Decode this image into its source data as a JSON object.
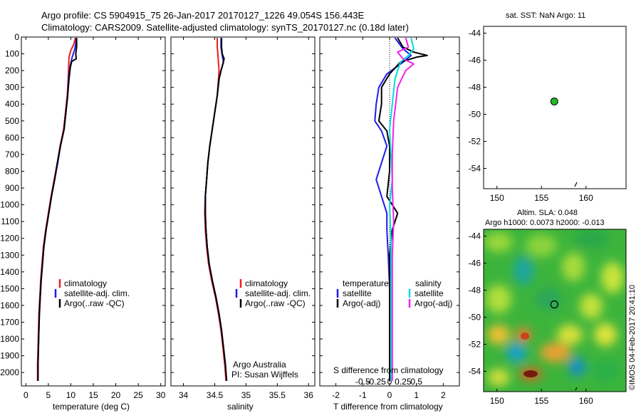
{
  "header": {
    "line1": "Argo profile: CS 5904915_75 26-Jan-2017 20170127_1226 49.054S 156.443E",
    "line2": "Climatology: CARS2009. Satellite-adjusted climatology: synTS_20170127.nc (0.18d later)"
  },
  "chart_data": [
    {
      "type": "line",
      "panel": "temperature",
      "xlabel": "temperature (deg C)",
      "ylabel": "",
      "xlim": [
        -1,
        31
      ],
      "ylim": [
        2080,
        0
      ],
      "y_reversed": true,
      "xticks": [
        0,
        5,
        10,
        15,
        20,
        25,
        30
      ],
      "yticks": [
        0,
        100,
        200,
        300,
        400,
        500,
        600,
        700,
        800,
        900,
        1000,
        1100,
        1200,
        1300,
        1400,
        1500,
        1600,
        1700,
        1800,
        1900,
        2000
      ],
      "legend": [
        "climatology",
        "satellite-adj. clim.",
        "Argo(..raw -QC)"
      ],
      "legend_position": "lower-left",
      "series": [
        {
          "name": "climatology",
          "color": "#ee1c1c",
          "points": [
            [
              11.0,
              5
            ],
            [
              10.7,
              40
            ],
            [
              10.0,
              80
            ],
            [
              9.6,
              120
            ],
            [
              9.5,
              180
            ],
            [
              9.4,
              250
            ],
            [
              9.2,
              350
            ],
            [
              8.8,
              450
            ],
            [
              8.4,
              550
            ],
            [
              7.6,
              650
            ],
            [
              7.0,
              750
            ],
            [
              6.3,
              850
            ],
            [
              5.6,
              950
            ],
            [
              5.0,
              1050
            ],
            [
              4.4,
              1150
            ],
            [
              3.9,
              1250
            ],
            [
              3.6,
              1350
            ],
            [
              3.3,
              1450
            ],
            [
              3.1,
              1550
            ],
            [
              2.9,
              1650
            ],
            [
              2.8,
              1750
            ],
            [
              2.7,
              1850
            ],
            [
              2.6,
              1950
            ],
            [
              2.6,
              2050
            ]
          ]
        },
        {
          "name": "satellite-adj. clim.",
          "color": "#1c1cee",
          "points": [
            [
              11.2,
              5
            ],
            [
              11.1,
              40
            ],
            [
              10.8,
              80
            ],
            [
              10.3,
              120
            ],
            [
              9.8,
              180
            ],
            [
              9.5,
              250
            ],
            [
              9.3,
              350
            ],
            [
              8.9,
              450
            ],
            [
              8.5,
              550
            ],
            [
              7.7,
              650
            ],
            [
              7.1,
              750
            ],
            [
              6.4,
              850
            ],
            [
              5.7,
              950
            ],
            [
              5.1,
              1050
            ],
            [
              4.5,
              1150
            ],
            [
              4.0,
              1250
            ],
            [
              3.7,
              1350
            ],
            [
              3.4,
              1450
            ],
            [
              3.2,
              1550
            ],
            [
              3.0,
              1650
            ],
            [
              2.9,
              1750
            ],
            [
              2.8,
              1850
            ],
            [
              2.7,
              1950
            ],
            [
              2.7,
              2050
            ]
          ]
        },
        {
          "name": "Argo(..raw -QC)",
          "color": "#000000",
          "points": [
            [
              11.3,
              5
            ],
            [
              11.3,
              60
            ],
            [
              11.1,
              100
            ],
            [
              11.2,
              130
            ],
            [
              10.2,
              145
            ],
            [
              9.9,
              180
            ],
            [
              9.6,
              250
            ],
            [
              9.3,
              350
            ],
            [
              8.9,
              450
            ],
            [
              8.5,
              550
            ],
            [
              7.7,
              650
            ],
            [
              7.0,
              750
            ],
            [
              6.4,
              850
            ],
            [
              5.7,
              950
            ],
            [
              5.1,
              1050
            ],
            [
              4.5,
              1150
            ],
            [
              4.0,
              1250
            ],
            [
              3.7,
              1350
            ],
            [
              3.4,
              1450
            ],
            [
              3.2,
              1550
            ],
            [
              3.0,
              1650
            ],
            [
              2.9,
              1750
            ],
            [
              2.8,
              1850
            ],
            [
              2.7,
              1950
            ],
            [
              2.7,
              2050
            ]
          ]
        }
      ]
    },
    {
      "type": "line",
      "panel": "salinity",
      "xlabel": "salinity",
      "ylabel": "",
      "xlim": [
        33.8,
        36.1
      ],
      "ylim": [
        2080,
        0
      ],
      "y_reversed": true,
      "xticks": [
        34,
        34.5,
        35,
        35.5,
        36
      ],
      "legend": [
        "climatology",
        "satellite-adj. clim.",
        "Argo(..raw -QC)"
      ],
      "legend_position": "lower-right",
      "annotations": [
        "Argo Australia",
        "PI: Susan Wijffels"
      ],
      "series": [
        {
          "name": "climatology",
          "color": "#ee1c1c",
          "points": [
            [
              34.54,
              5
            ],
            [
              34.54,
              60
            ],
            [
              34.55,
              100
            ],
            [
              34.56,
              150
            ],
            [
              34.57,
              200
            ],
            [
              34.56,
              250
            ],
            [
              34.54,
              350
            ],
            [
              34.5,
              450
            ],
            [
              34.46,
              550
            ],
            [
              34.42,
              650
            ],
            [
              34.39,
              750
            ],
            [
              34.37,
              850
            ],
            [
              34.35,
              950
            ],
            [
              34.34,
              1050
            ],
            [
              34.35,
              1150
            ],
            [
              34.37,
              1250
            ],
            [
              34.4,
              1350
            ],
            [
              34.45,
              1450
            ],
            [
              34.51,
              1550
            ],
            [
              34.56,
              1650
            ],
            [
              34.6,
              1750
            ],
            [
              34.63,
              1850
            ],
            [
              34.66,
              1950
            ],
            [
              34.68,
              2050
            ]
          ]
        },
        {
          "name": "satellite-adj. clim.",
          "color": "#1c1cee",
          "points": [
            [
              34.6,
              5
            ],
            [
              34.6,
              60
            ],
            [
              34.62,
              110
            ],
            [
              34.64,
              150
            ],
            [
              34.6,
              200
            ],
            [
              34.57,
              250
            ],
            [
              34.54,
              350
            ],
            [
              34.5,
              450
            ],
            [
              34.46,
              550
            ],
            [
              34.42,
              650
            ],
            [
              34.39,
              750
            ],
            [
              34.37,
              850
            ],
            [
              34.35,
              950
            ],
            [
              34.35,
              1050
            ],
            [
              34.36,
              1150
            ],
            [
              34.38,
              1250
            ],
            [
              34.41,
              1350
            ],
            [
              34.46,
              1450
            ],
            [
              34.52,
              1550
            ],
            [
              34.57,
              1650
            ],
            [
              34.61,
              1750
            ],
            [
              34.64,
              1850
            ],
            [
              34.67,
              1950
            ],
            [
              34.69,
              2050
            ]
          ]
        },
        {
          "name": "Argo(..raw -QC)",
          "color": "#000000",
          "points": [
            [
              34.61,
              5
            ],
            [
              34.61,
              60
            ],
            [
              34.62,
              100
            ],
            [
              34.65,
              130
            ],
            [
              34.63,
              160
            ],
            [
              34.6,
              200
            ],
            [
              34.57,
              250
            ],
            [
              34.54,
              350
            ],
            [
              34.5,
              450
            ],
            [
              34.46,
              550
            ],
            [
              34.42,
              650
            ],
            [
              34.39,
              750
            ],
            [
              34.37,
              850
            ],
            [
              34.35,
              950
            ],
            [
              34.35,
              1050
            ],
            [
              34.36,
              1150
            ],
            [
              34.38,
              1250
            ],
            [
              34.41,
              1350
            ],
            [
              34.46,
              1450
            ],
            [
              34.52,
              1550
            ],
            [
              34.57,
              1650
            ],
            [
              34.61,
              1750
            ],
            [
              34.64,
              1850
            ],
            [
              34.67,
              1950
            ],
            [
              34.69,
              2050
            ]
          ]
        }
      ]
    },
    {
      "type": "line",
      "panel": "difference",
      "xlabel": "T difference from climatology",
      "xlabel_top": "S difference from climatology",
      "xlim": [
        -2.6,
        2.6
      ],
      "ylim": [
        2080,
        0
      ],
      "y_reversed": true,
      "xticks": [
        -2,
        -1,
        0,
        1,
        2
      ],
      "sticks": [
        "-0.5",
        "-0.25",
        "0",
        "0.25",
        "0.5"
      ],
      "legend_left_title": "temperature",
      "legend_right_title": "salinity",
      "legend": [
        "satellite",
        "Argo(-adj)",
        "satellite",
        "Argo(-adj)"
      ],
      "series": [
        {
          "name": "T satellite",
          "color": "#1c1cee",
          "points": [
            [
              0.2,
              5
            ],
            [
              0.5,
              70
            ],
            [
              0.8,
              110
            ],
            [
              0.5,
              150
            ],
            [
              -0.1,
              220
            ],
            [
              -0.4,
              300
            ],
            [
              -0.5,
              400
            ],
            [
              -0.55,
              500
            ],
            [
              -0.3,
              560
            ],
            [
              -0.1,
              650
            ],
            [
              -0.3,
              750
            ],
            [
              -0.5,
              850
            ],
            [
              -0.3,
              950
            ],
            [
              -0.1,
              1050
            ],
            [
              -0.1,
              1150
            ],
            [
              -0.05,
              1300
            ],
            [
              0.0,
              1500
            ],
            [
              0.0,
              1800
            ],
            [
              0.05,
              2050
            ]
          ]
        },
        {
          "name": "T Argo(-adj)",
          "color": "#000000",
          "points": [
            [
              0.3,
              5
            ],
            [
              0.5,
              60
            ],
            [
              0.9,
              90
            ],
            [
              1.4,
              110
            ],
            [
              1.0,
              120
            ],
            [
              0.4,
              150
            ],
            [
              0.0,
              220
            ],
            [
              -0.3,
              300
            ],
            [
              -0.3,
              400
            ],
            [
              -0.4,
              500
            ],
            [
              -0.1,
              560
            ],
            [
              0.0,
              650
            ],
            [
              0.0,
              800
            ],
            [
              -0.1,
              950
            ],
            [
              0.3,
              1050
            ],
            [
              0.1,
              1150
            ],
            [
              0.0,
              1300
            ],
            [
              0.0,
              1500
            ],
            [
              0.0,
              1800
            ],
            [
              0.0,
              2050
            ]
          ]
        },
        {
          "name": "S satellite",
          "color": "#00dddd",
          "points": [
            [
              0.8,
              5
            ],
            [
              0.9,
              70
            ],
            [
              0.7,
              110
            ],
            [
              0.4,
              150
            ],
            [
              0.2,
              250
            ],
            [
              0.1,
              400
            ],
            [
              0.0,
              550
            ],
            [
              0.05,
              700
            ],
            [
              0.1,
              850
            ],
            [
              0.0,
              1000
            ],
            [
              0.05,
              1200
            ],
            [
              0.05,
              1500
            ],
            [
              0.05,
              1800
            ],
            [
              0.05,
              2050
            ]
          ]
        },
        {
          "name": "S Argo(-adj)",
          "color": "#ee22ee",
          "points": [
            [
              0.6,
              5
            ],
            [
              0.7,
              60
            ],
            [
              0.3,
              90
            ],
            [
              0.5,
              130
            ],
            [
              0.9,
              160
            ],
            [
              0.6,
              200
            ],
            [
              0.3,
              300
            ],
            [
              0.15,
              500
            ],
            [
              0.1,
              700
            ],
            [
              0.1,
              900
            ],
            [
              0.15,
              1100
            ],
            [
              0.1,
              1300
            ],
            [
              0.1,
              1600
            ],
            [
              0.1,
              2050
            ]
          ]
        }
      ]
    },
    {
      "type": "scatter",
      "panel": "location",
      "title": "sat. SST: NaN Argo: 11",
      "xlim": [
        148.5,
        164.5
      ],
      "ylim": [
        -55.5,
        -43.5
      ],
      "xticks": [
        150,
        155,
        160
      ],
      "yticks": [
        -44,
        -46,
        -48,
        -50,
        -52,
        -54
      ],
      "points": [
        {
          "x": 156.443,
          "y": -49.054,
          "color": "#22bb22"
        }
      ]
    },
    {
      "type": "heatmap",
      "panel": "altimetry",
      "title_line1": "Altim. SLA: 0.048",
      "title_line2": "Argo h1000: 0.0073 h2000: -0.013",
      "xlim": [
        148.5,
        164.5
      ],
      "ylim": [
        -55.5,
        -43.5
      ],
      "xticks": [
        150,
        155,
        160
      ],
      "yticks": [
        -44,
        -46,
        -48,
        -50,
        -52,
        -54
      ],
      "marker": {
        "x": 156.443,
        "y": -49.054
      },
      "side_label": "©IMOS 04-Feb-2017 20:41:10"
    }
  ]
}
